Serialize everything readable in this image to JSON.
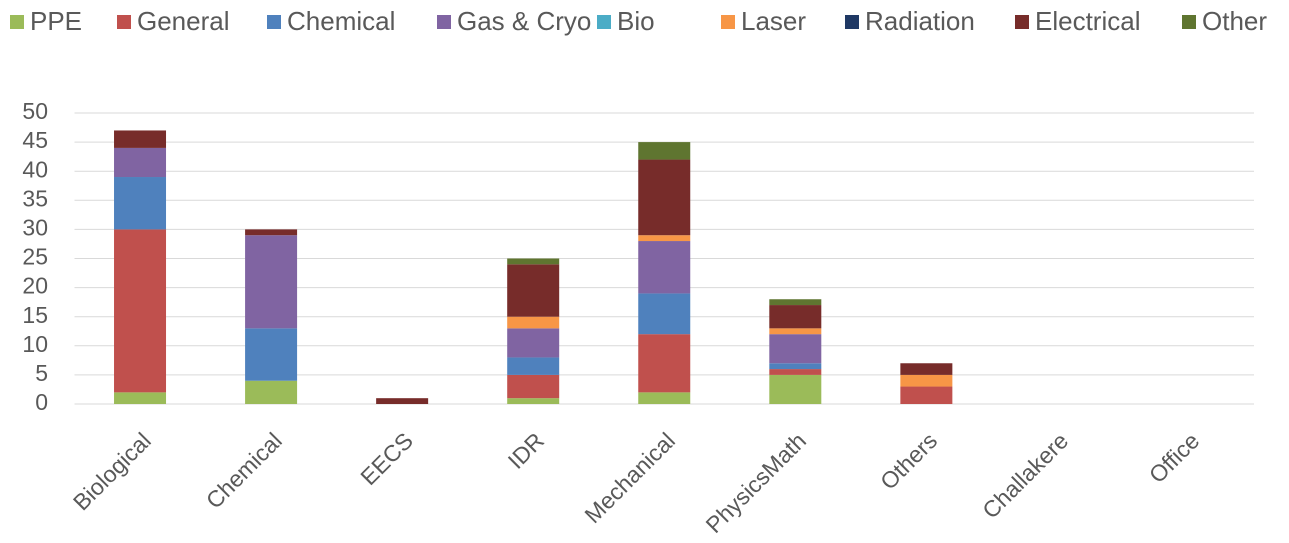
{
  "chart_data": {
    "type": "stacked_bar",
    "categories": [
      "Biological",
      "Chemical",
      "EECS",
      "IDR",
      "Mechanical",
      "PhysicsMath",
      "Others",
      "Challakere",
      "Office"
    ],
    "series": [
      {
        "name": "PPE",
        "color": "#9bbb59",
        "values": [
          2,
          4,
          0,
          1,
          2,
          5,
          0,
          0,
          0
        ]
      },
      {
        "name": "General",
        "color": "#c0504d",
        "values": [
          28,
          0,
          0,
          4,
          10,
          1,
          3,
          0,
          0
        ]
      },
      {
        "name": "Chemical",
        "color": "#4f81bd",
        "values": [
          9,
          9,
          0,
          3,
          7,
          1,
          0,
          0,
          0
        ]
      },
      {
        "name": "Gas & Cryo",
        "color": "#8064a2",
        "values": [
          5,
          16,
          0,
          5,
          9,
          5,
          0,
          0,
          0
        ]
      },
      {
        "name": "Bio",
        "color": "#4bacc6",
        "values": [
          0,
          0,
          0,
          0,
          0,
          0,
          0,
          0,
          0
        ]
      },
      {
        "name": "Laser",
        "color": "#f79646",
        "values": [
          0,
          0,
          0,
          2,
          1,
          1,
          2,
          0,
          0
        ]
      },
      {
        "name": "Radiation",
        "color": "#1f3864",
        "values": [
          0,
          0,
          0,
          0,
          0,
          0,
          0,
          0,
          0
        ]
      },
      {
        "name": "Electrical",
        "color": "#772c2a",
        "values": [
          3,
          1,
          1,
          9,
          13,
          4,
          2,
          0,
          0
        ]
      },
      {
        "name": "Other",
        "color": "#5f7530",
        "values": [
          0,
          0,
          0,
          1,
          3,
          1,
          0,
          0,
          0
        ]
      }
    ],
    "ylim": [
      0,
      50
    ],
    "yticks": [
      0,
      5,
      10,
      15,
      20,
      25,
      30,
      35,
      40,
      45,
      50
    ],
    "grid": true,
    "legend": "top"
  }
}
